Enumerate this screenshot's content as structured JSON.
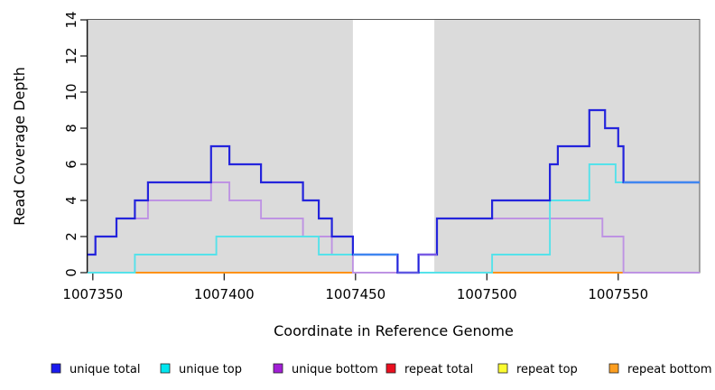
{
  "chart_data": {
    "type": "line",
    "step": true,
    "title": "",
    "xlabel": "Coordinate in Reference Genome",
    "ylabel": "Read Coverage Depth",
    "xlim": [
      1007348,
      1007581
    ],
    "ylim": [
      0,
      14
    ],
    "xticks": [
      1007350,
      1007400,
      1007450,
      1007500,
      1007550
    ],
    "yticks": [
      0,
      2,
      4,
      6,
      8,
      10,
      12,
      14
    ],
    "grid": false,
    "legend_position": "bottom",
    "background_regions": [
      {
        "name": "unique-region-left",
        "from": 1007348,
        "to": 1007449,
        "color": "#dbdbdb"
      },
      {
        "name": "unique-region-right",
        "from": 1007480,
        "to": 1007581,
        "color": "#dbdbdb"
      }
    ],
    "series": [
      {
        "name": "unique total",
        "color": "#2424dc",
        "points": [
          [
            1007348,
            1
          ],
          [
            1007351,
            2
          ],
          [
            1007359,
            3
          ],
          [
            1007366,
            4
          ],
          [
            1007371,
            5
          ],
          [
            1007395,
            7
          ],
          [
            1007402,
            6
          ],
          [
            1007414,
            5
          ],
          [
            1007430,
            4
          ],
          [
            1007436,
            3
          ],
          [
            1007441,
            2
          ],
          [
            1007449,
            1
          ],
          [
            1007466,
            0
          ],
          [
            1007474,
            1
          ],
          [
            1007481,
            3
          ],
          [
            1007502,
            4
          ],
          [
            1007524,
            6
          ],
          [
            1007527,
            7
          ],
          [
            1007539,
            9
          ],
          [
            1007545,
            8
          ],
          [
            1007550,
            7
          ],
          [
            1007552,
            5
          ],
          [
            1007581,
            5
          ]
        ]
      },
      {
        "name": "unique top",
        "color": "#55e2ea",
        "points": [
          [
            1007348,
            0
          ],
          [
            1007366,
            1
          ],
          [
            1007397,
            2
          ],
          [
            1007436,
            1
          ],
          [
            1007466,
            0
          ],
          [
            1007502,
            1
          ],
          [
            1007524,
            4
          ],
          [
            1007539,
            6
          ],
          [
            1007549,
            5
          ],
          [
            1007581,
            5
          ]
        ]
      },
      {
        "name": "unique bottom",
        "color": "#be93e3",
        "points": [
          [
            1007348,
            1
          ],
          [
            1007351,
            2
          ],
          [
            1007359,
            3
          ],
          [
            1007371,
            4
          ],
          [
            1007395,
            5
          ],
          [
            1007402,
            4
          ],
          [
            1007414,
            3
          ],
          [
            1007430,
            2
          ],
          [
            1007441,
            1
          ],
          [
            1007449,
            0
          ],
          [
            1007474,
            1
          ],
          [
            1007481,
            3
          ],
          [
            1007544,
            2
          ],
          [
            1007552,
            0
          ],
          [
            1007581,
            0
          ]
        ]
      },
      {
        "name": "repeat total",
        "color": "#e01020",
        "points": [
          [
            1007348,
            0
          ],
          [
            1007581,
            0
          ]
        ]
      },
      {
        "name": "repeat top",
        "color": "#fafa30",
        "points": [
          [
            1007348,
            0
          ],
          [
            1007581,
            0
          ]
        ]
      },
      {
        "name": "repeat bottom",
        "color": "#ff9214",
        "points": [
          [
            1007348,
            0
          ],
          [
            1007581,
            0
          ]
        ]
      }
    ],
    "zero_line_visible_segments": [
      {
        "from": 1007348,
        "to": 1007366,
        "color": "#72c585"
      },
      {
        "from": 1007366,
        "to": 1007449,
        "color": "#ff9214"
      },
      {
        "from": 1007449,
        "to": 1007466,
        "color": "#d4547b"
      },
      {
        "from": 1007474,
        "to": 1007502,
        "color": "#72c585"
      },
      {
        "from": 1007502,
        "to": 1007552,
        "color": "#ff9214"
      },
      {
        "from": 1007552,
        "to": 1007581,
        "color": "#d4547b"
      }
    ],
    "overlap_highlight_segments": [
      {
        "value": 1,
        "from": 1007449,
        "to": 1007466,
        "color": "#3e87f0"
      },
      {
        "value": 0,
        "from": 1007466,
        "to": 1007474,
        "color": "#6159e2"
      },
      {
        "value": 1,
        "from": 1007474,
        "to": 1007481,
        "color": "#7a5be4"
      },
      {
        "value": 5,
        "from": 1007552,
        "to": 1007581,
        "color": "#3e87f0"
      }
    ],
    "legend": [
      {
        "label": "unique total",
        "color": "#1a1aee"
      },
      {
        "label": "unique top",
        "color": "#00e6f0"
      },
      {
        "label": "unique bottom",
        "color": "#a21fd6"
      },
      {
        "label": "repeat total",
        "color": "#ea0f1f"
      },
      {
        "label": "repeat top",
        "color": "#fcfc30"
      },
      {
        "label": "repeat bottom",
        "color": "#fc9e20"
      }
    ]
  }
}
